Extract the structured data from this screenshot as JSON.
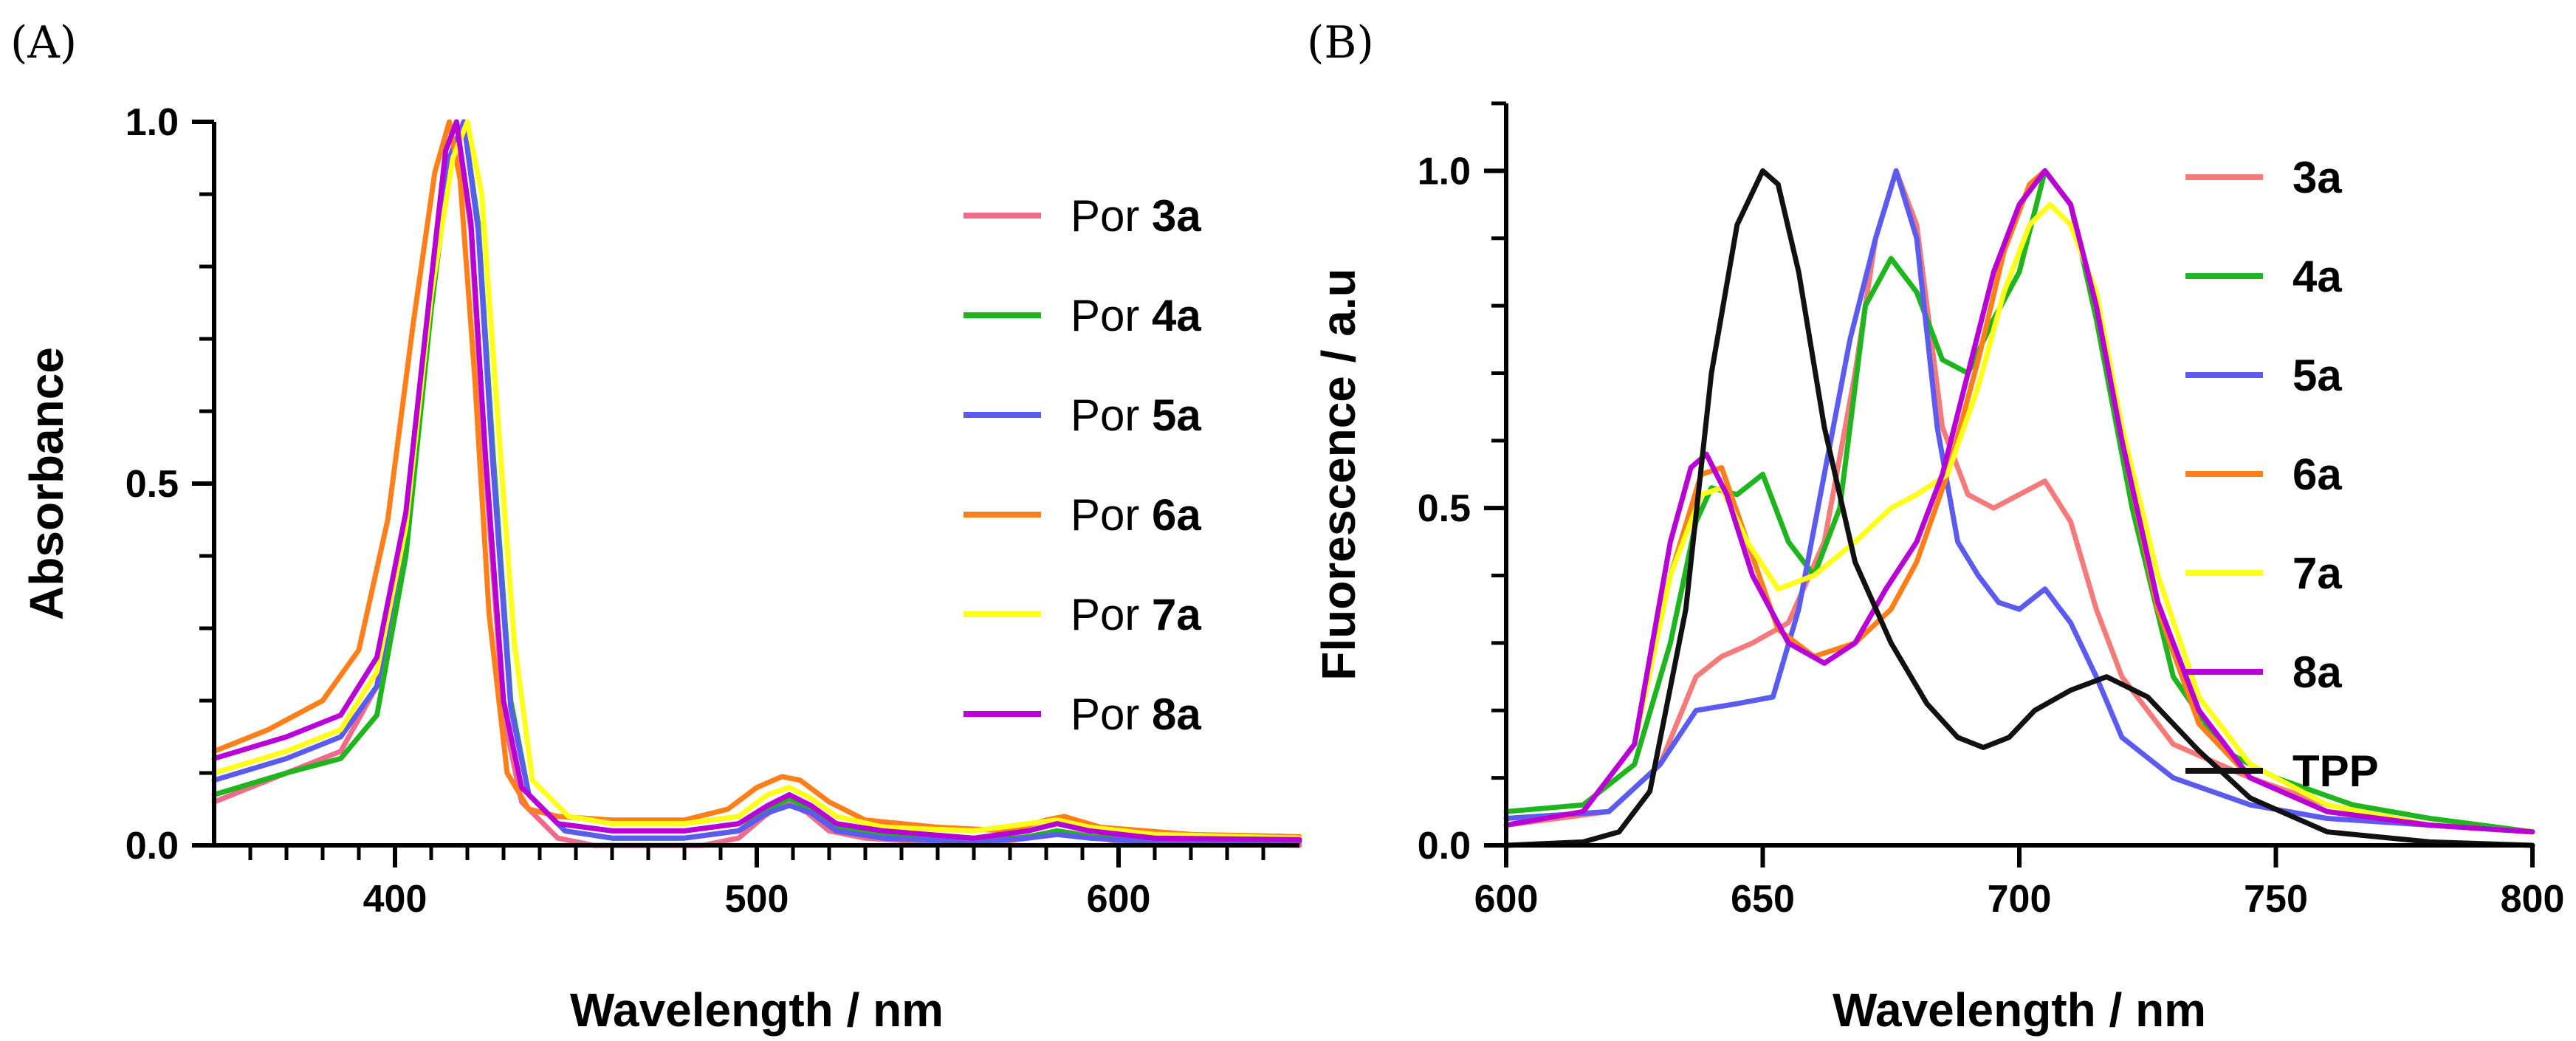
{
  "chart_data": [
    {
      "id": "A",
      "type": "line",
      "panel_label": "(A)",
      "xlabel": "Wavelength / nm",
      "ylabel": "Absorbance",
      "xlim": [
        350,
        650
      ],
      "ylim": [
        0,
        1
      ],
      "x_ticks": [
        400,
        500,
        600
      ],
      "x_tick_labels": [
        "400",
        "500",
        "600"
      ],
      "x_minor_ticks": [
        360,
        370,
        380,
        390,
        410,
        420,
        430,
        440,
        450,
        460,
        470,
        480,
        490,
        510,
        520,
        530,
        540,
        550,
        560,
        570,
        580,
        590,
        610,
        620,
        630,
        640
      ],
      "y_ticks": [
        0,
        0.5,
        1
      ],
      "y_tick_labels": [
        "0.0",
        "0.5",
        "1.0"
      ],
      "y_minor_ticks": [
        0.1,
        0.2,
        0.3,
        0.4,
        0.6,
        0.7,
        0.8,
        0.9
      ],
      "legend_position": "right",
      "series": [
        {
          "name": "Por 3a",
          "prefix": "Por ",
          "label": "3a",
          "color": "#F06A8C",
          "x": [
            350,
            370,
            385,
            395,
            403,
            410,
            414,
            417,
            421,
            425,
            430,
            435,
            445,
            455,
            470,
            485,
            495,
            502,
            508,
            514,
            520,
            530,
            560,
            575,
            583,
            590,
            600,
            650
          ],
          "y": [
            0.06,
            0.1,
            0.13,
            0.22,
            0.45,
            0.78,
            0.96,
            1.0,
            0.85,
            0.52,
            0.18,
            0.06,
            0.01,
            0.0,
            0.0,
            0.0,
            0.01,
            0.04,
            0.06,
            0.045,
            0.02,
            0.01,
            0.0,
            0.01,
            0.02,
            0.015,
            0.005,
            0.0
          ]
        },
        {
          "name": "Por 4a",
          "prefix": "Por ",
          "label": "4a",
          "color": "#1FB51F",
          "x": [
            350,
            370,
            385,
            395,
            403,
            410,
            415,
            419,
            423,
            427,
            432,
            437,
            447,
            460,
            480,
            495,
            503,
            509,
            515,
            522,
            535,
            560,
            575,
            583,
            592,
            610,
            650
          ],
          "y": [
            0.07,
            0.1,
            0.12,
            0.18,
            0.4,
            0.74,
            0.94,
            1.0,
            0.86,
            0.55,
            0.2,
            0.07,
            0.02,
            0.01,
            0.01,
            0.02,
            0.05,
            0.065,
            0.05,
            0.025,
            0.015,
            0.005,
            0.012,
            0.02,
            0.012,
            0.008,
            0.005
          ]
        },
        {
          "name": "Por 5a",
          "prefix": "Por ",
          "label": "5a",
          "color": "#5B5BF0",
          "x": [
            350,
            370,
            385,
            395,
            403,
            410,
            415,
            419,
            423,
            427,
            432,
            437,
            447,
            460,
            480,
            495,
            503,
            509,
            515,
            522,
            535,
            560,
            575,
            583,
            592,
            610,
            650
          ],
          "y": [
            0.09,
            0.12,
            0.15,
            0.22,
            0.44,
            0.78,
            0.95,
            1.0,
            0.85,
            0.53,
            0.19,
            0.07,
            0.02,
            0.01,
            0.01,
            0.02,
            0.045,
            0.055,
            0.045,
            0.02,
            0.01,
            0.005,
            0.01,
            0.015,
            0.01,
            0.005,
            0.005
          ]
        },
        {
          "name": "Por 6a",
          "prefix": "Por ",
          "label": "6a",
          "color": "#FF7F1A",
          "x": [
            350,
            365,
            380,
            390,
            398,
            405,
            411,
            415,
            418,
            422,
            426,
            431,
            437,
            445,
            460,
            480,
            492,
            500,
            507,
            512,
            520,
            530,
            550,
            570,
            580,
            585,
            595,
            620,
            650
          ],
          "y": [
            0.13,
            0.16,
            0.2,
            0.27,
            0.45,
            0.72,
            0.93,
            1.0,
            0.92,
            0.65,
            0.32,
            0.1,
            0.05,
            0.04,
            0.035,
            0.035,
            0.05,
            0.08,
            0.095,
            0.09,
            0.06,
            0.035,
            0.025,
            0.02,
            0.035,
            0.04,
            0.025,
            0.015,
            0.012
          ]
        },
        {
          "name": "Por 7a",
          "prefix": "Por ",
          "label": "7a",
          "color": "#FFFF1A",
          "x": [
            350,
            370,
            385,
            395,
            403,
            410,
            416,
            420,
            424,
            428,
            433,
            438,
            448,
            460,
            480,
            495,
            503,
            509,
            515,
            522,
            535,
            560,
            575,
            583,
            592,
            610,
            650
          ],
          "y": [
            0.1,
            0.13,
            0.16,
            0.24,
            0.44,
            0.76,
            0.95,
            1.0,
            0.9,
            0.62,
            0.28,
            0.09,
            0.04,
            0.03,
            0.03,
            0.04,
            0.07,
            0.08,
            0.065,
            0.04,
            0.025,
            0.02,
            0.03,
            0.035,
            0.025,
            0.015,
            0.01
          ]
        },
        {
          "name": "Por 8a",
          "prefix": "Por ",
          "label": "8a",
          "color": "#B800D6",
          "x": [
            350,
            370,
            385,
            395,
            403,
            410,
            414,
            417,
            421,
            425,
            430,
            435,
            445,
            460,
            480,
            495,
            503,
            509,
            515,
            522,
            535,
            560,
            575,
            583,
            592,
            610,
            650
          ],
          "y": [
            0.12,
            0.15,
            0.18,
            0.26,
            0.46,
            0.78,
            0.96,
            1.0,
            0.86,
            0.54,
            0.2,
            0.08,
            0.03,
            0.02,
            0.02,
            0.03,
            0.055,
            0.07,
            0.055,
            0.03,
            0.02,
            0.01,
            0.02,
            0.03,
            0.02,
            0.01,
            0.008
          ]
        }
      ]
    },
    {
      "id": "B",
      "type": "line",
      "panel_label": "(B)",
      "xlabel": "Wavelength / nm",
      "ylabel": "Fluorescence / a.u",
      "xlim": [
        600,
        800
      ],
      "ylim": [
        0,
        1.1
      ],
      "x_ticks": [
        600,
        650,
        700,
        750,
        800
      ],
      "x_tick_labels": [
        "600",
        "650",
        "700",
        "750",
        "800"
      ],
      "x_minor_ticks": [],
      "y_ticks": [
        0,
        0.5,
        1
      ],
      "y_tick_labels": [
        "0.0",
        "0.5",
        "1.0"
      ],
      "y_minor_ticks": [
        0.1,
        0.2,
        0.3,
        0.4,
        0.6,
        0.7,
        0.8,
        0.9,
        1.1
      ],
      "legend_position": "right",
      "series": [
        {
          "name": "3a",
          "prefix": "",
          "label": "3a",
          "color": "#F57A7A",
          "x": [
            600,
            620,
            630,
            637,
            642,
            648,
            655,
            662,
            668,
            672,
            676,
            680,
            685,
            690,
            695,
            700,
            705,
            710,
            715,
            720,
            730,
            745,
            760,
            780,
            800
          ],
          "y": [
            0.03,
            0.05,
            0.12,
            0.25,
            0.28,
            0.3,
            0.33,
            0.45,
            0.7,
            0.9,
            1.0,
            0.92,
            0.62,
            0.52,
            0.5,
            0.52,
            0.54,
            0.48,
            0.35,
            0.25,
            0.15,
            0.1,
            0.06,
            0.03,
            0.02
          ]
        },
        {
          "name": "4a",
          "prefix": "",
          "label": "4a",
          "color": "#1FB51F",
          "x": [
            600,
            615,
            625,
            632,
            637,
            640,
            645,
            650,
            655,
            660,
            665,
            670,
            675,
            680,
            685,
            690,
            695,
            700,
            705,
            710,
            715,
            722,
            730,
            740,
            750,
            765,
            780,
            800
          ],
          "y": [
            0.05,
            0.06,
            0.12,
            0.3,
            0.48,
            0.53,
            0.52,
            0.55,
            0.45,
            0.4,
            0.5,
            0.8,
            0.87,
            0.82,
            0.72,
            0.7,
            0.78,
            0.85,
            1.0,
            0.95,
            0.78,
            0.5,
            0.25,
            0.14,
            0.1,
            0.06,
            0.04,
            0.02
          ]
        },
        {
          "name": "5a",
          "prefix": "",
          "label": "5a",
          "color": "#5B5BF0",
          "x": [
            600,
            620,
            630,
            637,
            645,
            652,
            657,
            662,
            667,
            672,
            676,
            680,
            684,
            688,
            692,
            696,
            700,
            705,
            710,
            715,
            720,
            730,
            745,
            760,
            780,
            800
          ],
          "y": [
            0.04,
            0.05,
            0.12,
            0.2,
            0.21,
            0.22,
            0.35,
            0.55,
            0.75,
            0.9,
            1.0,
            0.9,
            0.62,
            0.45,
            0.4,
            0.36,
            0.35,
            0.38,
            0.33,
            0.25,
            0.16,
            0.1,
            0.06,
            0.04,
            0.03,
            0.02
          ]
        },
        {
          "name": "6a",
          "prefix": "",
          "label": "6a",
          "color": "#FF7F1A",
          "x": [
            600,
            615,
            625,
            632,
            638,
            642,
            647,
            653,
            660,
            668,
            675,
            680,
            686,
            692,
            697,
            702,
            705,
            710,
            715,
            720,
            727,
            735,
            745,
            760,
            780,
            800
          ],
          "y": [
            0.03,
            0.05,
            0.15,
            0.4,
            0.55,
            0.56,
            0.45,
            0.32,
            0.28,
            0.3,
            0.35,
            0.42,
            0.55,
            0.72,
            0.88,
            0.98,
            1.0,
            0.95,
            0.8,
            0.6,
            0.35,
            0.18,
            0.1,
            0.05,
            0.03,
            0.02
          ]
        },
        {
          "name": "7a",
          "prefix": "",
          "label": "7a",
          "color": "#FFFF1A",
          "x": [
            600,
            615,
            625,
            632,
            638,
            642,
            647,
            653,
            660,
            668,
            675,
            680,
            686,
            692,
            697,
            702,
            706,
            710,
            715,
            720,
            727,
            735,
            745,
            760,
            780,
            800
          ],
          "y": [
            0.03,
            0.05,
            0.15,
            0.4,
            0.52,
            0.53,
            0.45,
            0.38,
            0.4,
            0.45,
            0.5,
            0.52,
            0.55,
            0.68,
            0.82,
            0.92,
            0.95,
            0.92,
            0.82,
            0.62,
            0.4,
            0.22,
            0.12,
            0.06,
            0.03,
            0.02
          ]
        },
        {
          "name": "8a",
          "prefix": "",
          "label": "8a",
          "color": "#B800D6",
          "x": [
            600,
            615,
            625,
            632,
            636,
            639,
            643,
            648,
            655,
            662,
            668,
            674,
            680,
            685,
            690,
            695,
            700,
            705,
            710,
            715,
            720,
            727,
            735,
            745,
            760,
            780,
            800
          ],
          "y": [
            0.03,
            0.05,
            0.15,
            0.45,
            0.56,
            0.58,
            0.52,
            0.4,
            0.3,
            0.27,
            0.3,
            0.38,
            0.45,
            0.55,
            0.7,
            0.85,
            0.95,
            1.0,
            0.95,
            0.8,
            0.6,
            0.36,
            0.2,
            0.1,
            0.05,
            0.03,
            0.02
          ]
        },
        {
          "name": "TPP",
          "prefix": "",
          "label": "TPP",
          "color": "#111111",
          "x": [
            600,
            615,
            622,
            628,
            635,
            640,
            645,
            650,
            653,
            657,
            662,
            668,
            675,
            682,
            688,
            693,
            698,
            703,
            710,
            717,
            725,
            735,
            745,
            760,
            780,
            800
          ],
          "y": [
            0.0,
            0.005,
            0.02,
            0.08,
            0.35,
            0.7,
            0.92,
            1.0,
            0.98,
            0.85,
            0.62,
            0.42,
            0.3,
            0.21,
            0.16,
            0.145,
            0.16,
            0.2,
            0.23,
            0.25,
            0.22,
            0.14,
            0.07,
            0.02,
            0.005,
            0.0
          ]
        }
      ]
    }
  ]
}
